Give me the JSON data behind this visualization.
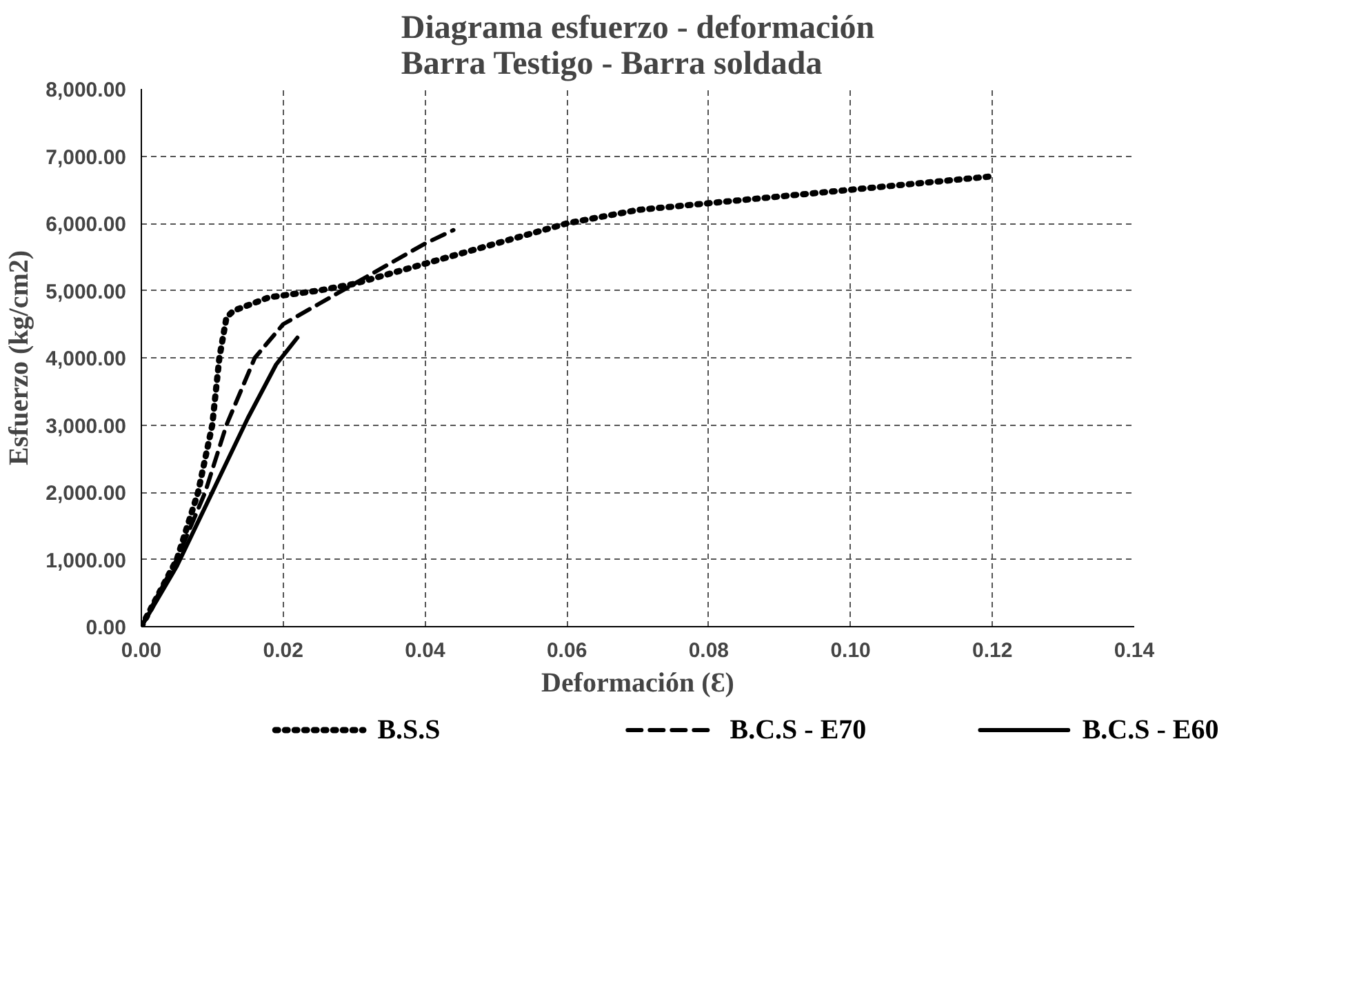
{
  "chart_data": {
    "type": "line",
    "title": "Diagrama esfuerzo - deformación\nBarra Testigo - Barra soldada",
    "xlabel": "Deformación (Ɛ)",
    "ylabel": "Esfuerzo (kg/cm2)",
    "xlim": [
      0,
      0.14
    ],
    "ylim": [
      0,
      8000
    ],
    "xticks": [
      {
        "value": 0,
        "label": "0.00"
      },
      {
        "value": 0.02,
        "label": "0.02"
      },
      {
        "value": 0.04,
        "label": "0.04"
      },
      {
        "value": 0.06,
        "label": "0.06"
      },
      {
        "value": 0.08,
        "label": "0.08"
      },
      {
        "value": 0.1,
        "label": "0.10"
      },
      {
        "value": 0.12,
        "label": "0.12"
      },
      {
        "value": 0.14,
        "label": "0.14"
      }
    ],
    "yticks": [
      {
        "value": 0,
        "label": "0.00"
      },
      {
        "value": 1000,
        "label": "1,000.00"
      },
      {
        "value": 2000,
        "label": "2,000.00"
      },
      {
        "value": 3000,
        "label": "3,000.00"
      },
      {
        "value": 4000,
        "label": "4,000.00"
      },
      {
        "value": 5000,
        "label": "5,000.00"
      },
      {
        "value": 6000,
        "label": "6,000.00"
      },
      {
        "value": 7000,
        "label": "7,000.00"
      },
      {
        "value": 8000,
        "label": "8,000.00"
      }
    ],
    "grid": true,
    "legend": "bottom",
    "marker": "none",
    "series": [
      {
        "name": "B.S.S",
        "color": "#000000",
        "line_style": "dotted",
        "x": [
          0,
          0.005,
          0.008,
          0.01,
          0.011,
          0.012,
          0.013,
          0.018,
          0.025,
          0.03,
          0.04,
          0.05,
          0.06,
          0.07,
          0.08,
          0.09,
          0.1,
          0.11,
          0.12
        ],
        "values": [
          0,
          1000,
          2000,
          3000,
          4000,
          4600,
          4700,
          4900,
          5000,
          5100,
          5400,
          5700,
          6000,
          6200,
          6300,
          6400,
          6500,
          6600,
          6700
        ]
      },
      {
        "name": "B.C.S - E70",
        "color": "#000000",
        "line_style": "dashed",
        "x": [
          0,
          0.005,
          0.009,
          0.012,
          0.016,
          0.02,
          0.025,
          0.03,
          0.035,
          0.04,
          0.044
        ],
        "values": [
          0,
          1000,
          2000,
          3000,
          4000,
          4500,
          4800,
          5100,
          5400,
          5700,
          5900
        ]
      },
      {
        "name": "B.C.S - E60",
        "color": "#000000",
        "line_style": "solid",
        "x": [
          0,
          0.005,
          0.01,
          0.015,
          0.019,
          0.022
        ],
        "values": [
          0,
          900,
          2000,
          3100,
          3900,
          4300
        ]
      }
    ]
  }
}
